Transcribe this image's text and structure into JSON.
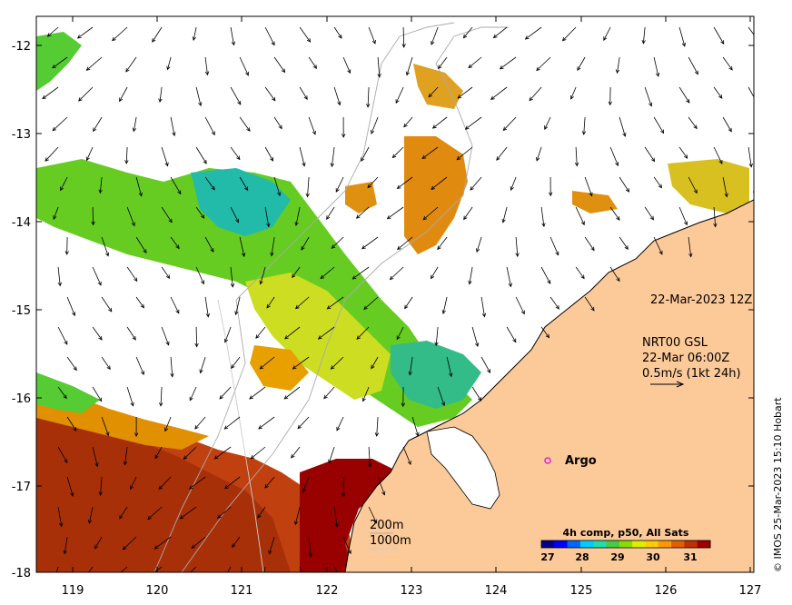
{
  "map": {
    "x_ticks": [
      "119",
      "120",
      "121",
      "122",
      "123",
      "124",
      "125",
      "126",
      "127"
    ],
    "y_ticks": [
      "-12",
      "-13",
      "-14",
      "-15",
      "-16",
      "-17",
      "-18"
    ],
    "lon_range": [
      118.6,
      127.0
    ],
    "lat_range": [
      -18.0,
      -11.8
    ],
    "date_label": "22-Mar-2023 12Z",
    "current_source": "NRT00 GSL",
    "current_time": "22-Mar 06:00Z",
    "current_scale": "0.5m/s (1kt 24h)",
    "isobath_200": "200m",
    "isobath_1000": "1000m",
    "argo_label": "Argo",
    "credit": "© IMOS 25-Mar-2023 15:10 Hobart",
    "colors": {
      "land": "#fcc999",
      "coast": "#000000",
      "isobath": "#aaaaaa",
      "argo": "#e020e0"
    }
  },
  "colorbar": {
    "title": "4h comp, p50, All Sats",
    "ticks": [
      "27",
      "28",
      "29",
      "30",
      "31"
    ],
    "range": [
      26.6,
      31.8
    ],
    "palette": [
      "#00008b",
      "#0000ff",
      "#0066ff",
      "#00ccff",
      "#22ddaa",
      "#44cc44",
      "#88dd00",
      "#ddee00",
      "#ffcc00",
      "#ff9900",
      "#e06000",
      "#c03000",
      "#a00000"
    ]
  }
}
